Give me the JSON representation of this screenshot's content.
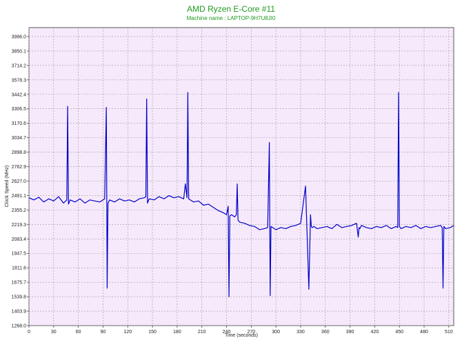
{
  "chart_data": {
    "type": "line",
    "title": "AMD Ryzen E-Core #11",
    "subtitle": "Machine name : LAPTOP-9H7U8JI0",
    "xlabel": "Time (seconds)",
    "ylabel": "Clock Speed (MHz)",
    "xlim": [
      0,
      516
    ],
    "ylim": [
      1268.0,
      4070
    ],
    "x_ticks": [
      "0",
      "30",
      "60",
      "90",
      "120",
      "150",
      "180",
      "210",
      "240",
      "270",
      "300",
      "330",
      "360",
      "390",
      "420",
      "450",
      "480",
      "510"
    ],
    "y_ticks": [
      "1268.0",
      "1403.9",
      "1539.8",
      "1675.7",
      "1811.6",
      "1947.5",
      "2083.4",
      "2219.3",
      "2355.2",
      "2491.1",
      "2627.0",
      "2762.9",
      "2898.8",
      "3034.7",
      "3170.6",
      "3306.5",
      "3442.4",
      "3578.3",
      "3714.2",
      "3850.1",
      "3986.0"
    ],
    "grid": true,
    "background": "#f6e9fb",
    "line_color": "#0000c8",
    "title_color": "#1e9a1e",
    "series": [
      {
        "x": [
          0,
          6,
          12,
          18,
          24,
          30,
          36,
          42,
          46,
          47,
          48,
          50,
          56,
          62,
          68,
          74,
          80,
          86,
          92,
          94,
          95,
          96,
          98,
          104,
          110,
          116,
          122,
          128,
          134,
          140,
          142,
          143,
          144,
          146,
          152,
          158,
          164,
          170,
          176,
          182,
          188,
          190,
          192,
          193,
          194,
          196,
          200,
          206,
          212,
          218,
          224,
          230,
          236,
          240,
          242,
          243,
          244,
          246,
          250,
          252,
          253,
          254,
          256,
          262,
          268,
          274,
          280,
          286,
          290,
          292,
          293,
          294,
          296,
          300,
          306,
          312,
          318,
          324,
          330,
          336,
          340,
          342,
          343,
          344,
          346,
          350,
          356,
          362,
          368,
          374,
          380,
          386,
          392,
          398,
          400,
          401,
          402,
          404,
          410,
          416,
          422,
          428,
          434,
          440,
          446,
          448,
          449,
          450,
          452,
          458,
          464,
          470,
          476,
          482,
          488,
          494,
          500,
          502,
          503,
          504,
          506,
          512,
          516
        ],
        "y": [
          2470,
          2450,
          2475,
          2430,
          2460,
          2440,
          2480,
          2420,
          2450,
          3330,
          2410,
          2450,
          2430,
          2460,
          2420,
          2450,
          2440,
          2430,
          2460,
          3320,
          1620,
          2420,
          2450,
          2430,
          2460,
          2440,
          2450,
          2430,
          2460,
          2470,
          2480,
          3400,
          2420,
          2460,
          2450,
          2480,
          2460,
          2490,
          2470,
          2480,
          2460,
          2600,
          2470,
          3460,
          2460,
          2450,
          2430,
          2440,
          2400,
          2410,
          2380,
          2350,
          2330,
          2310,
          2390,
          1540,
          2300,
          2310,
          2290,
          2310,
          2600,
          2260,
          2240,
          2230,
          2210,
          2200,
          2170,
          2180,
          2190,
          2990,
          1550,
          2200,
          2190,
          2170,
          2190,
          2180,
          2200,
          2210,
          2230,
          2580,
          1610,
          2310,
          2200,
          2190,
          2200,
          2180,
          2190,
          2200,
          2180,
          2220,
          2190,
          2200,
          2210,
          2230,
          2100,
          2190,
          2180,
          2210,
          2190,
          2180,
          2200,
          2190,
          2210,
          2180,
          2200,
          2190,
          3460,
          2200,
          2180,
          2200,
          2190,
          2210,
          2180,
          2200,
          2190,
          2200,
          2210,
          2190,
          1620,
          2200,
          2180,
          2190,
          2210
        ]
      }
    ]
  }
}
